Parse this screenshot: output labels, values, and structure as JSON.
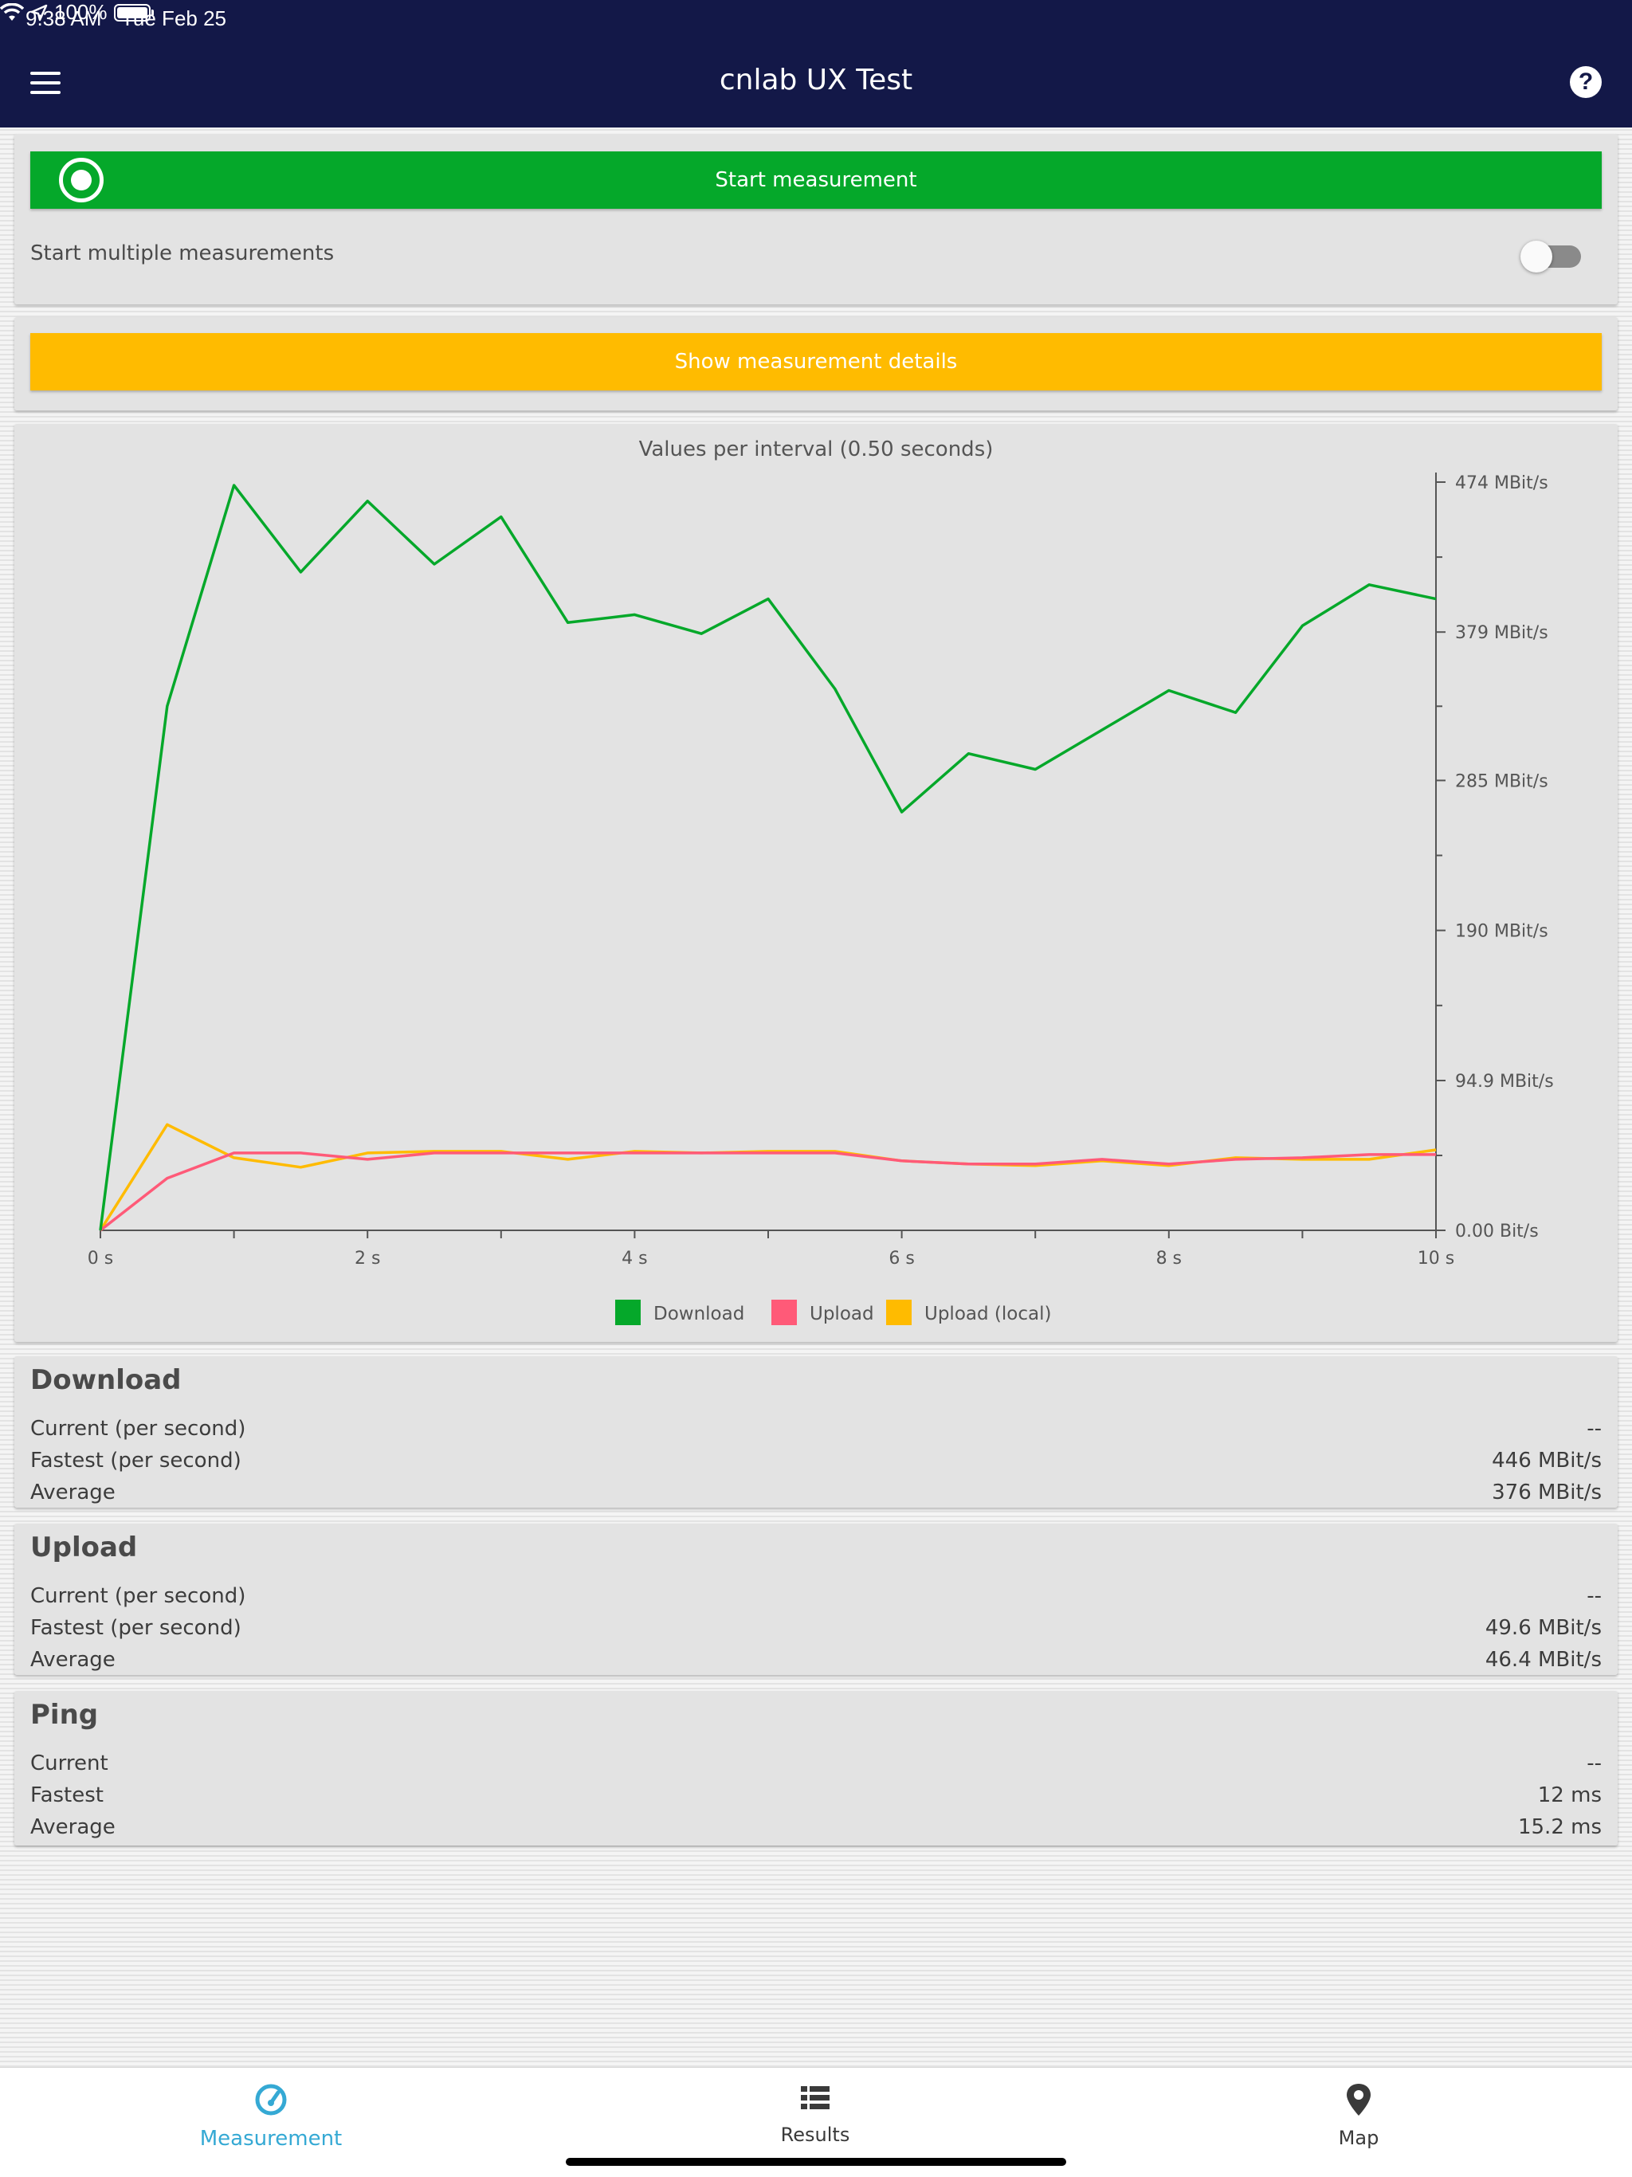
{
  "status_bar": {
    "time": "9:38 AM",
    "date": "Tue Feb 25",
    "battery": "100%"
  },
  "nav": {
    "title": "cnlab UX Test",
    "menu_icon": "hamburger-menu-icon",
    "help_icon": "question-mark-icon"
  },
  "controls": {
    "start_label": "Start measurement",
    "start_icon": "radio-record-icon",
    "multi_label": "Start multiple measurements",
    "multi_enabled": false,
    "details_label": "Show measurement details"
  },
  "colors": {
    "nav_bg": "#131848",
    "start_button": "#05a82a",
    "details_button": "#ffbb00",
    "download": "#05a82a",
    "upload": "#ff5a78",
    "upload_local": "#ffbb00",
    "active_tab": "#35a9d4"
  },
  "chart_data": {
    "type": "line",
    "title": "Values per interval (0.50 seconds)",
    "x": [
      0,
      0.5,
      1,
      1.5,
      2,
      2.5,
      3,
      3.5,
      4,
      4.5,
      5,
      5.5,
      6,
      6.5,
      7,
      7.5,
      8,
      8.5,
      9,
      9.5,
      10
    ],
    "x_ticks": [
      0,
      2,
      4,
      6,
      8,
      10
    ],
    "x_tick_labels": [
      "0 s",
      "2 s",
      "4 s",
      "6 s",
      "8 s",
      "10 s"
    ],
    "xlim": [
      0,
      10
    ],
    "ylim": [
      0,
      474
    ],
    "y_ticks": [
      0,
      94.9,
      190,
      285,
      379,
      474
    ],
    "y_tick_labels": [
      "0.00 Bit/s",
      "94.9 MBit/s",
      "190 MBit/s",
      "285 MBit/s",
      "379 MBit/s",
      "474 MBit/s"
    ],
    "y_axis_side": "right",
    "legend_position": "bottom",
    "series": [
      {
        "name": "Download",
        "color": "#05a82a",
        "values": [
          0,
          332,
          472,
          417,
          462,
          422,
          452,
          385,
          390,
          378,
          400,
          343,
          265,
          302,
          292,
          317,
          342,
          328,
          383,
          409,
          400
        ]
      },
      {
        "name": "Upload",
        "color": "#ff5a78",
        "values": [
          0,
          33,
          49,
          49,
          45,
          49,
          49,
          49,
          49,
          49,
          49,
          49,
          44,
          42,
          42,
          45,
          42,
          45,
          46,
          48,
          48
        ]
      },
      {
        "name": "Upload (local)",
        "color": "#ffbb00",
        "values": [
          0,
          67,
          46,
          40,
          49,
          50,
          50,
          45,
          50,
          49,
          50,
          50,
          44,
          42,
          41,
          44,
          41,
          46,
          45,
          45,
          51
        ]
      }
    ]
  },
  "stats": {
    "download": {
      "title": "Download",
      "rows": [
        {
          "label": "Current (per second)",
          "value": "--"
        },
        {
          "label": "Fastest (per second)",
          "value": "446 MBit/s"
        },
        {
          "label": "Average",
          "value": "376 MBit/s"
        }
      ]
    },
    "upload": {
      "title": "Upload",
      "rows": [
        {
          "label": "Current (per second)",
          "value": "--"
        },
        {
          "label": "Fastest (per second)",
          "value": "49.6 MBit/s"
        },
        {
          "label": "Average",
          "value": "46.4 MBit/s"
        }
      ]
    },
    "ping": {
      "title": "Ping",
      "rows": [
        {
          "label": "Current",
          "value": "--"
        },
        {
          "label": "Fastest",
          "value": "12 ms"
        },
        {
          "label": "Average",
          "value": "15.2 ms"
        }
      ]
    }
  },
  "tabs": [
    {
      "label": "Measurement",
      "icon": "speedometer-icon",
      "active": true
    },
    {
      "label": "Results",
      "icon": "list-icon",
      "active": false
    },
    {
      "label": "Map",
      "icon": "map-pin-icon",
      "active": false
    }
  ]
}
